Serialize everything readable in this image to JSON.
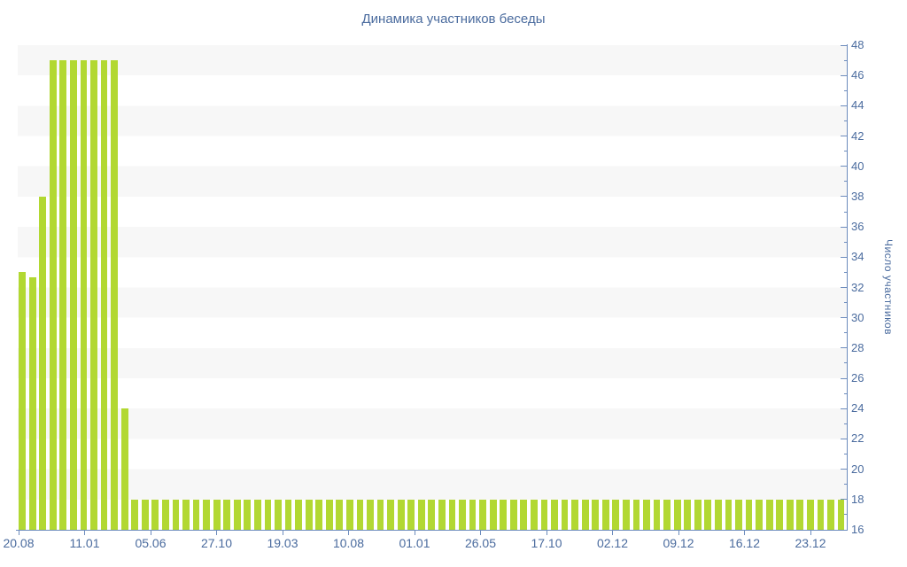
{
  "chart_data": {
    "type": "bar",
    "title": "Динамика участников беседы",
    "xlabel": "",
    "ylabel": "Число участников",
    "ylim": [
      16,
      48
    ],
    "y_tick_labels": [
      16,
      18,
      20,
      22,
      24,
      26,
      28,
      30,
      32,
      34,
      36,
      38,
      40,
      42,
      44,
      46,
      48
    ],
    "y_minor_tick_step": 1,
    "x_tick_labels": [
      "20.08",
      "11.01",
      "05.06",
      "27.10",
      "19.03",
      "10.08",
      "01.01",
      "26.05",
      "17.10",
      "02.12",
      "09.12",
      "16.12",
      "23.12"
    ],
    "grid": "alternating horizontal bands, 2 units per band",
    "legend": "none",
    "axis_side": "right",
    "values": [
      33,
      32.7,
      38,
      47,
      47,
      47,
      47,
      47,
      47,
      47,
      24,
      18,
      18,
      18,
      18,
      18,
      18,
      18,
      18,
      18,
      18,
      18,
      18,
      18,
      18,
      18,
      18,
      18,
      18,
      18,
      18,
      18,
      18,
      18,
      18,
      18,
      18,
      18,
      18,
      18,
      18,
      18,
      18,
      18,
      18,
      18,
      18,
      18,
      18,
      18,
      18,
      18,
      18,
      18,
      18,
      18,
      18,
      18,
      18,
      18,
      18,
      18,
      18,
      18,
      18,
      18,
      18,
      18,
      18,
      18,
      18,
      18,
      18,
      18,
      18,
      18,
      18,
      18,
      18,
      18,
      18
    ],
    "colors": {
      "bar": "#b2d832",
      "band": "#f7f7f7",
      "background": "#ffffff",
      "axis": "#6d8cbd",
      "labels": "#4a6b9e",
      "title": "#4a6b9e"
    }
  }
}
